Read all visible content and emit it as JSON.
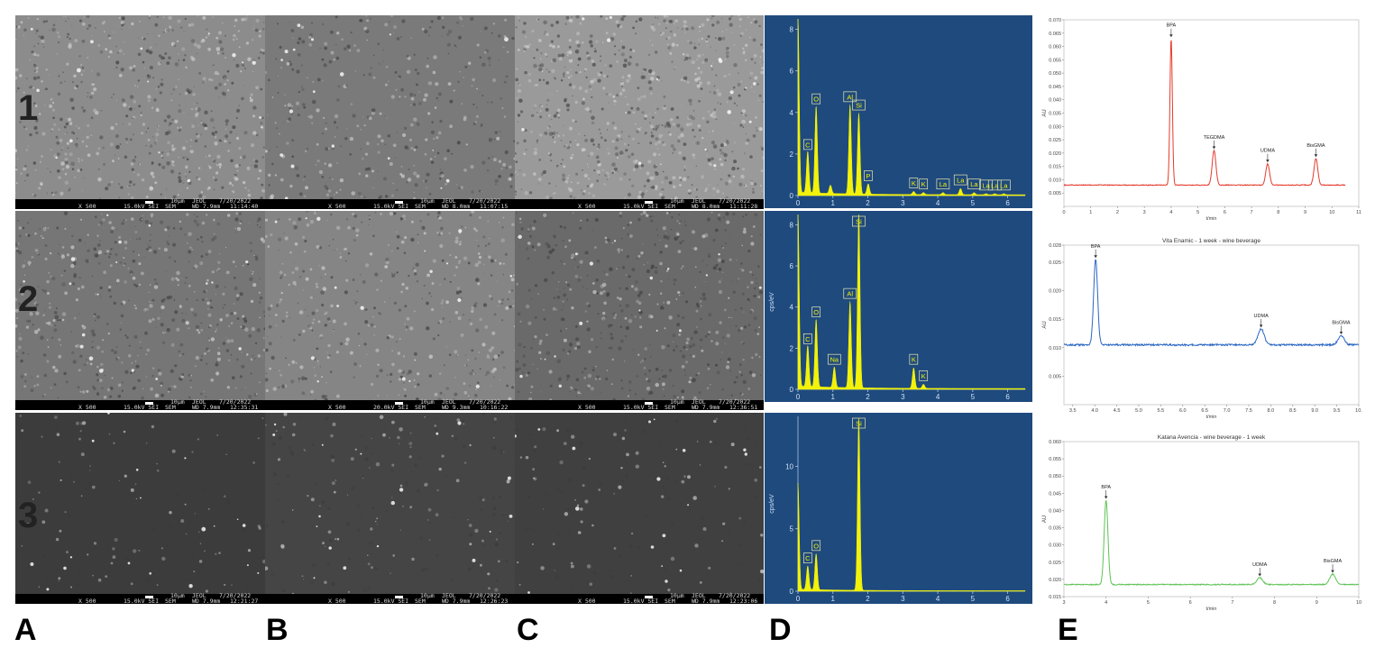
{
  "labels": {
    "rows": [
      "1",
      "2",
      "3"
    ],
    "cols": [
      "A",
      "B",
      "C",
      "D",
      "E"
    ]
  },
  "sem": [
    [
      {
        "mag": "X 500",
        "kv": "15.0kV SEI",
        "scale": "10µm",
        "brand": "JEOL",
        "date": "7/20/2022",
        "mode": "SEM",
        "wd": "WD 7.9mm",
        "time": "11:14:40"
      },
      {
        "mag": "X 500",
        "kv": "15.0kV SEI",
        "scale": "10µm",
        "brand": "JEOL",
        "date": "7/20/2022",
        "mode": "SEM",
        "wd": "WD 8.0mm",
        "time": "11:07:15"
      },
      {
        "mag": "X 500",
        "kv": "15.0kV SEI",
        "scale": "10µm",
        "brand": "JEOL",
        "date": "7/20/2022",
        "mode": "SEM",
        "wd": "WD 8.0mm",
        "time": "11:11:28"
      }
    ],
    [
      {
        "mag": "X 500",
        "kv": "15.0kV SEI",
        "scale": "10µm",
        "brand": "JEOL",
        "date": "7/20/2022",
        "mode": "SEM",
        "wd": "WD 7.9mm",
        "time": "12:35:31"
      },
      {
        "mag": "X 500",
        "kv": "20.0kV SEI",
        "scale": "10µm",
        "brand": "JEOL",
        "date": "7/20/2022",
        "mode": "SEM",
        "wd": "WD 9.3mm",
        "time": "10:16:22"
      },
      {
        "mag": "X 500",
        "kv": "15.0kV SEI",
        "scale": "10µm",
        "brand": "JEOL",
        "date": "7/20/2022",
        "mode": "SEM",
        "wd": "WD 7.9mm",
        "time": "12:36:51"
      }
    ],
    [
      {
        "mag": "X 500",
        "kv": "15.0kV SEI",
        "scale": "10µm",
        "brand": "JEOL",
        "date": "7/20/2022",
        "mode": "SEM",
        "wd": "WD 7.9mm",
        "time": "12:21:27"
      },
      {
        "mag": "X 500",
        "kv": "15.0kV SEI",
        "scale": "10µm",
        "brand": "JEOL",
        "date": "7/20/2022",
        "mode": "SEM",
        "wd": "WD 7.9mm",
        "time": "12:26:23"
      },
      {
        "mag": "X 500",
        "kv": "15.0kV SEI",
        "scale": "10µm",
        "brand": "JEOL",
        "date": "7/20/2022",
        "mode": "SEM",
        "wd": "WD 7.9mm",
        "time": "12:23:06"
      }
    ]
  ],
  "colors": {
    "eds_bg": "#1f4a7d",
    "eds_peak": "#f2f20a",
    "eds_axis": "#a9c4e4",
    "hplc_red": "#e53a2c",
    "hplc_blue": "#2a66c2",
    "hplc_green": "#5ec254"
  },
  "chart_data": [
    {
      "type": "line",
      "panel": "D1",
      "ylabel": "",
      "xlim": [
        0,
        6.5
      ],
      "ylim": [
        0,
        8.5
      ],
      "xticks": [
        "0",
        "1",
        "2",
        "3",
        "4",
        "5",
        "6"
      ],
      "yticks": [
        "0",
        "2",
        "4",
        "6",
        "8"
      ],
      "peaks": [
        {
          "x": 0.0,
          "y": 8.5,
          "label": ""
        },
        {
          "x": 0.28,
          "y": 2.0,
          "label": "C"
        },
        {
          "x": 0.52,
          "y": 4.2,
          "label": "O"
        },
        {
          "x": 0.93,
          "y": 0.4,
          "label": ""
        },
        {
          "x": 1.49,
          "y": 4.3,
          "label": "Al"
        },
        {
          "x": 1.74,
          "y": 3.9,
          "label": "Si"
        },
        {
          "x": 2.01,
          "y": 0.5,
          "label": "P"
        },
        {
          "x": 3.31,
          "y": 0.15,
          "label": "K"
        },
        {
          "x": 3.59,
          "y": 0.1,
          "label": "K"
        },
        {
          "x": 4.15,
          "y": 0.1,
          "label": "La"
        },
        {
          "x": 4.65,
          "y": 0.3,
          "label": "La"
        },
        {
          "x": 5.04,
          "y": 0.1,
          "label": "La"
        },
        {
          "x": 5.38,
          "y": 0.05,
          "label": "La"
        },
        {
          "x": 5.63,
          "y": 0.05,
          "label": "La"
        },
        {
          "x": 5.89,
          "y": 0.05,
          "label": "La"
        }
      ]
    },
    {
      "type": "line",
      "panel": "D2",
      "ylabel": "cps/eV",
      "xlim": [
        0,
        6.5
      ],
      "ylim": [
        0,
        8.5
      ],
      "xticks": [
        "0",
        "1",
        "2",
        "3",
        "4",
        "5",
        "6"
      ],
      "yticks": [
        "0",
        "2",
        "4",
        "6",
        "8"
      ],
      "peaks": [
        {
          "x": 0.0,
          "y": 8.5,
          "label": ""
        },
        {
          "x": 0.28,
          "y": 2.0,
          "label": "C"
        },
        {
          "x": 0.52,
          "y": 3.3,
          "label": "O"
        },
        {
          "x": 1.04,
          "y": 1.0,
          "label": "Na"
        },
        {
          "x": 1.49,
          "y": 4.2,
          "label": "Al"
        },
        {
          "x": 1.74,
          "y": 8.5,
          "label": "Si"
        },
        {
          "x": 3.31,
          "y": 1.0,
          "label": "K"
        },
        {
          "x": 3.59,
          "y": 0.2,
          "label": "K"
        }
      ]
    },
    {
      "type": "line",
      "panel": "D3",
      "ylabel": "cps/eV",
      "xlim": [
        0,
        6.5
      ],
      "ylim": [
        0,
        14
      ],
      "xticks": [
        "0",
        "1",
        "2",
        "3",
        "4",
        "5",
        "6"
      ],
      "yticks": [
        "0",
        "5",
        "10"
      ],
      "peaks": [
        {
          "x": 0.0,
          "y": 8.5,
          "label": ""
        },
        {
          "x": 0.28,
          "y": 1.9,
          "label": "C"
        },
        {
          "x": 0.52,
          "y": 2.9,
          "label": "O"
        },
        {
          "x": 1.74,
          "y": 13.8,
          "label": "Si"
        }
      ]
    },
    {
      "type": "line",
      "panel": "E1",
      "title": "",
      "xlabel": "t/min",
      "ylabel": "AU",
      "xlim": [
        0,
        11
      ],
      "ylim": [
        0,
        0.07
      ],
      "xticks": [
        0,
        1,
        2,
        3,
        4,
        5,
        6,
        7,
        8,
        9,
        10,
        11
      ],
      "yticks": [
        "0.005",
        "0.010",
        "0.015",
        "0.020",
        "0.025",
        "0.030",
        "0.035",
        "0.040",
        "0.045",
        "0.050",
        "0.055",
        "0.060",
        "0.065",
        "0.070"
      ],
      "baseline": 0.008,
      "peaks": [
        {
          "x": 4.0,
          "y": 0.063,
          "label": "BPA"
        },
        {
          "x": 5.6,
          "y": 0.021,
          "label": "TEGDMA"
        },
        {
          "x": 7.6,
          "y": 0.016,
          "label": "UDMA"
        },
        {
          "x": 9.4,
          "y": 0.018,
          "label": "BisGMA"
        }
      ]
    },
    {
      "type": "line",
      "panel": "E2",
      "title": "Vita Enamic - 1 week - wine beverage",
      "xlabel": "t/min",
      "ylabel": "AU",
      "xlim": [
        3.3,
        10.0
      ],
      "ylim": [
        0.0,
        0.028
      ],
      "xticks": [
        "3.5",
        "4.0",
        "4.5",
        "5.0",
        "5.5",
        "6.0",
        "6.5",
        "7.0",
        "7.5",
        "8.0",
        "8.5",
        "9.0",
        "9.5",
        "10."
      ],
      "yticks": [
        "0.005",
        "0.010",
        "0.015",
        "0.020",
        "0.025",
        "0.028"
      ],
      "baseline": 0.0105,
      "peaks": [
        {
          "x": 4.02,
          "y": 0.0255,
          "label": "BPA"
        },
        {
          "x": 7.78,
          "y": 0.0133,
          "label": "UDMA"
        },
        {
          "x": 9.6,
          "y": 0.0121,
          "label": "BisGMA"
        }
      ]
    },
    {
      "type": "line",
      "panel": "E3",
      "title": "Katana Avencia - wine beverage - 1 week",
      "xlabel": "t/min",
      "ylabel": "AU",
      "xlim": [
        3,
        10
      ],
      "ylim": [
        0.015,
        0.06
      ],
      "xticks": [
        "3",
        "4",
        "5",
        "6",
        "7",
        "8",
        "9",
        "10"
      ],
      "yticks": [
        "0.015",
        "0.020",
        "0.025",
        "0.030",
        "0.035",
        "0.040",
        "0.045",
        "0.050",
        "0.055",
        "0.060"
      ],
      "baseline": 0.0185,
      "peaks": [
        {
          "x": 4.0,
          "y": 0.043,
          "label": "BPA"
        },
        {
          "x": 7.65,
          "y": 0.0205,
          "label": "UDMA"
        },
        {
          "x": 9.38,
          "y": 0.0215,
          "label": "BisGMA"
        }
      ]
    }
  ]
}
